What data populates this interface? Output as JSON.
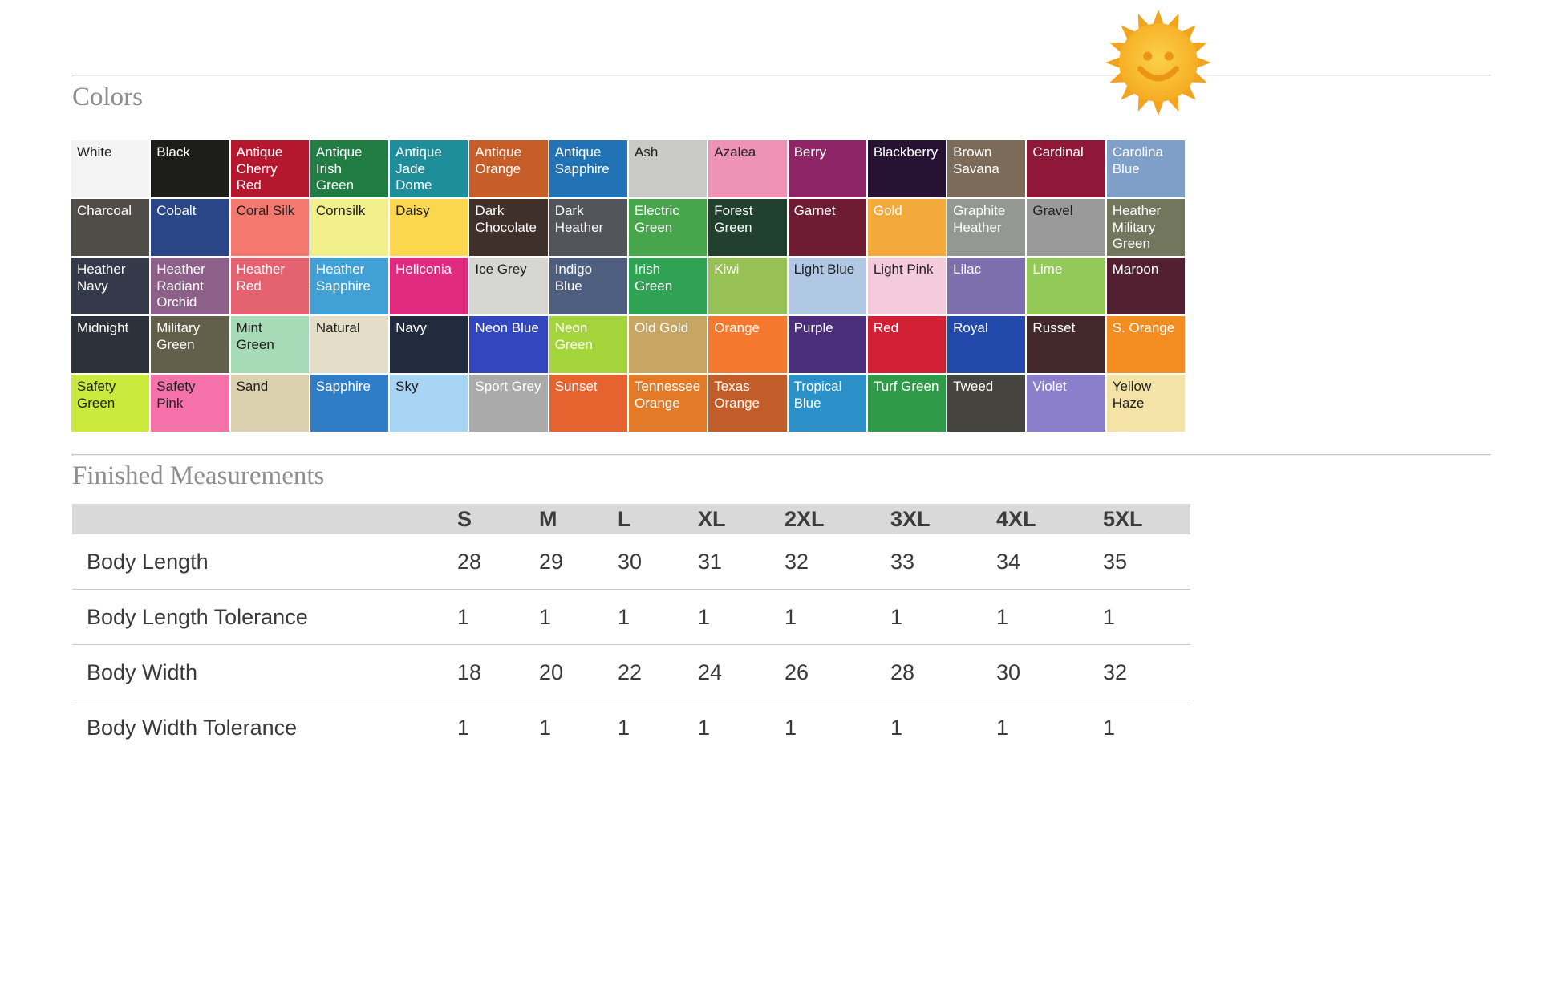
{
  "headings": {
    "colors": "Colors",
    "measurements": "Finished Measurements"
  },
  "icons": {
    "sun": "sun-smiley-icon"
  },
  "sun_colors": {
    "rays": "#f2a41e",
    "disc_center": "#fbd14a",
    "disc_edge": "#f5a81e",
    "face": "#ec9413"
  },
  "colors": [
    {
      "name": "White",
      "bg": "#f3f3f3",
      "text": "#1f1f1f"
    },
    {
      "name": "Black",
      "bg": "#1d1d1b",
      "text": "#ffffff"
    },
    {
      "name": "Antique Cherry Red",
      "bg": "#b5182e",
      "text": "#ffffff"
    },
    {
      "name": "Antique Irish Green",
      "bg": "#227d44",
      "text": "#ffffff"
    },
    {
      "name": "Antique Jade Dome",
      "bg": "#1f8e9b",
      "text": "#ffffff"
    },
    {
      "name": "Antique Orange",
      "bg": "#c75d28",
      "text": "#ffffff"
    },
    {
      "name": "Antique Sapphire",
      "bg": "#2273b5",
      "text": "#ffffff"
    },
    {
      "name": "Ash",
      "bg": "#c9c9c7",
      "text": "#1f1f1f"
    },
    {
      "name": "Azalea",
      "bg": "#ef93b4",
      "text": "#1f1f1f"
    },
    {
      "name": "Berry",
      "bg": "#8e2566",
      "text": "#ffffff"
    },
    {
      "name": "Blackberry",
      "bg": "#261333",
      "text": "#ffffff"
    },
    {
      "name": "Brown Savana",
      "bg": "#7d6b59",
      "text": "#ffffff"
    },
    {
      "name": "Cardinal",
      "bg": "#8f1839",
      "text": "#ffffff"
    },
    {
      "name": "Carolina Blue",
      "bg": "#7e9fc8",
      "text": "#ffffff"
    },
    {
      "name": "Charcoal",
      "bg": "#504d48",
      "text": "#ffffff"
    },
    {
      "name": "Cobalt",
      "bg": "#2b4687",
      "text": "#ffffff"
    },
    {
      "name": "Coral Silk",
      "bg": "#f4786e",
      "text": "#1f1f1f"
    },
    {
      "name": "Cornsilk",
      "bg": "#f1ef89",
      "text": "#1f1f1f"
    },
    {
      "name": "Daisy",
      "bg": "#fad74e",
      "text": "#1f1f1f"
    },
    {
      "name": "Dark Chocolate",
      "bg": "#40302b",
      "text": "#ffffff"
    },
    {
      "name": "Dark Heather",
      "bg": "#53535a",
      "text": "#ffffff"
    },
    {
      "name": "Electric Green",
      "bg": "#47a64b",
      "text": "#ffffff"
    },
    {
      "name": "Forest Green",
      "bg": "#21402d",
      "text": "#ffffff"
    },
    {
      "name": "Garnet",
      "bg": "#6d1c34",
      "text": "#ffffff"
    },
    {
      "name": "Gold",
      "bg": "#f3a93c",
      "text": "#ffffff"
    },
    {
      "name": "Graphite Heather",
      "bg": "#959793",
      "text": "#ffffff"
    },
    {
      "name": "Gravel",
      "bg": "#99999a",
      "text": "#1f1f1f"
    },
    {
      "name": "Heather Military Green",
      "bg": "#72765c",
      "text": "#ffffff"
    },
    {
      "name": "Heather Navy",
      "bg": "#343a4a",
      "text": "#ffffff"
    },
    {
      "name": "Heather Radiant Orchid",
      "bg": "#8d6089",
      "text": "#ffffff"
    },
    {
      "name": "Heather Red",
      "bg": "#e4626f",
      "text": "#ffffff"
    },
    {
      "name": "Heather Sapphire",
      "bg": "#41a0d5",
      "text": "#ffffff"
    },
    {
      "name": "Heliconia",
      "bg": "#e02b80",
      "text": "#ffffff"
    },
    {
      "name": "Ice Grey",
      "bg": "#d6d6d3",
      "text": "#1f1f1f"
    },
    {
      "name": "Indigo Blue",
      "bg": "#4e5e7e",
      "text": "#ffffff"
    },
    {
      "name": "Irish Green",
      "bg": "#2fa353",
      "text": "#ffffff"
    },
    {
      "name": "Kiwi",
      "bg": "#97c055",
      "text": "#ffffff"
    },
    {
      "name": "Light Blue",
      "bg": "#b0c8e3",
      "text": "#1f1f1f"
    },
    {
      "name": "Light Pink",
      "bg": "#f3cbdb",
      "text": "#1f1f1f"
    },
    {
      "name": "Lilac",
      "bg": "#7c6fae",
      "text": "#ffffff"
    },
    {
      "name": "Lime",
      "bg": "#93c958",
      "text": "#ffffff"
    },
    {
      "name": "Maroon",
      "bg": "#522031",
      "text": "#ffffff"
    },
    {
      "name": "Midnight",
      "bg": "#2d3139",
      "text": "#ffffff"
    },
    {
      "name": "Military Green",
      "bg": "#62604a",
      "text": "#ffffff"
    },
    {
      "name": "Mint Green",
      "bg": "#a7dab6",
      "text": "#1f1f1f"
    },
    {
      "name": "Natural",
      "bg": "#e4ddc8",
      "text": "#1f1f1f"
    },
    {
      "name": "Navy",
      "bg": "#202b3e",
      "text": "#ffffff"
    },
    {
      "name": "Neon Blue",
      "bg": "#3247bf",
      "text": "#ffffff"
    },
    {
      "name": "Neon Green",
      "bg": "#a4d63c",
      "text": "#ffffff"
    },
    {
      "name": "Old Gold",
      "bg": "#c6a662",
      "text": "#ffffff"
    },
    {
      "name": "Orange",
      "bg": "#f5782e",
      "text": "#ffffff"
    },
    {
      "name": "Purple",
      "bg": "#4b2e7b",
      "text": "#ffffff"
    },
    {
      "name": "Red",
      "bg": "#d12033",
      "text": "#ffffff"
    },
    {
      "name": "Royal",
      "bg": "#2349ad",
      "text": "#ffffff"
    },
    {
      "name": "Russet",
      "bg": "#43292b",
      "text": "#ffffff"
    },
    {
      "name": "S. Orange",
      "bg": "#f38d21",
      "text": "#ffffff"
    },
    {
      "name": "Safety Green",
      "bg": "#cce93d",
      "text": "#1f1f1f"
    },
    {
      "name": "Safety Pink",
      "bg": "#f571a9",
      "text": "#1f1f1f"
    },
    {
      "name": "Sand",
      "bg": "#dbd1af",
      "text": "#1f1f1f"
    },
    {
      "name": "Sapphire",
      "bg": "#2f7dc6",
      "text": "#ffffff"
    },
    {
      "name": "Sky",
      "bg": "#a8d5f3",
      "text": "#1f1f1f"
    },
    {
      "name": "Sport Grey",
      "bg": "#aaaaaa",
      "text": "#ffffff"
    },
    {
      "name": "Sunset",
      "bg": "#e6622e",
      "text": "#ffffff"
    },
    {
      "name": "Tennessee Orange",
      "bg": "#e37a27",
      "text": "#ffffff"
    },
    {
      "name": "Texas Orange",
      "bg": "#c25d29",
      "text": "#ffffff"
    },
    {
      "name": "Tropical Blue",
      "bg": "#2b90c8",
      "text": "#ffffff"
    },
    {
      "name": "Turf Green",
      "bg": "#2f9a48",
      "text": "#ffffff"
    },
    {
      "name": "Tweed",
      "bg": "#46443f",
      "text": "#ffffff"
    },
    {
      "name": "Violet",
      "bg": "#8b7eca",
      "text": "#ffffff"
    },
    {
      "name": "Yellow Haze",
      "bg": "#f3e3a6",
      "text": "#1f1f1f"
    }
  ],
  "measurements": {
    "columns": [
      "S",
      "M",
      "L",
      "XL",
      "2XL",
      "3XL",
      "4XL",
      "5XL"
    ],
    "rows": [
      {
        "label": "Body Length",
        "values": [
          "28",
          "29",
          "30",
          "31",
          "32",
          "33",
          "34",
          "35"
        ]
      },
      {
        "label": "Body Length Tolerance",
        "values": [
          "1",
          "1",
          "1",
          "1",
          "1",
          "1",
          "1",
          "1"
        ]
      },
      {
        "label": "Body Width",
        "values": [
          "18",
          "20",
          "22",
          "24",
          "26",
          "28",
          "30",
          "32"
        ]
      },
      {
        "label": "Body Width Tolerance",
        "values": [
          "1",
          "1",
          "1",
          "1",
          "1",
          "1",
          "1",
          "1"
        ]
      }
    ]
  }
}
